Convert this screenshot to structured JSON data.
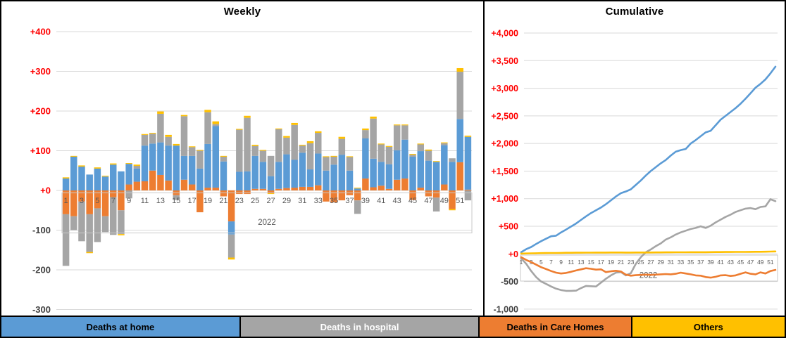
{
  "panels": {
    "weekly": {
      "title": "Weekly"
    },
    "cumulative": {
      "title": "Cumulative"
    }
  },
  "colors": {
    "home": "#5B9BD5",
    "hospital": "#A5A5A5",
    "care_homes": "#ED7D31",
    "others": "#FFC000",
    "axis_positive": "#FF0000",
    "axis_negative": "#404040",
    "tick_text": "#595959",
    "gridline": "#D9D9D9",
    "tick_box": "#C9C9C9",
    "frame_border": "#000000"
  },
  "legend": [
    {
      "label": "Deaths at home",
      "color": "#5B9BD5",
      "text_color": "#000000",
      "width_pct": 30.55
    },
    {
      "label": "Deaths in hospital",
      "color": "#A5A5A5",
      "text_color": "#FFFFFF",
      "width_pct": 30.55
    },
    {
      "label": "Deaths in Care Homes",
      "color": "#ED7D31",
      "text_color": "#000000",
      "width_pct": 19.45
    },
    {
      "label": "Others",
      "color": "#FFC000",
      "text_color": "#000000",
      "width_pct": 19.45
    }
  ],
  "chart_data": [
    {
      "type": "bar",
      "stacked": true,
      "title": "Weekly",
      "xlabel": "2022",
      "x": [
        1,
        2,
        3,
        4,
        5,
        6,
        7,
        8,
        9,
        10,
        11,
        12,
        13,
        14,
        15,
        16,
        17,
        18,
        19,
        20,
        21,
        22,
        23,
        24,
        25,
        26,
        27,
        28,
        29,
        30,
        31,
        32,
        33,
        34,
        35,
        36,
        37,
        38,
        39,
        40,
        41,
        42,
        43,
        44,
        45,
        46,
        47,
        48,
        49,
        50,
        51,
        52
      ],
      "xticks": [
        1,
        3,
        5,
        7,
        9,
        11,
        13,
        15,
        17,
        19,
        21,
        23,
        25,
        27,
        29,
        31,
        33,
        35,
        37,
        39,
        41,
        43,
        45,
        47,
        49,
        51
      ],
      "ylim": [
        -300,
        400
      ],
      "yticks": [
        {
          "value": 400,
          "label": "+400"
        },
        {
          "value": 300,
          "label": "+300"
        },
        {
          "value": 200,
          "label": "+200"
        },
        {
          "value": 100,
          "label": "+100"
        },
        {
          "value": 0,
          "label": "+0"
        },
        {
          "value": -100,
          "label": "-100"
        },
        {
          "value": -200,
          "label": "-200"
        },
        {
          "value": -300,
          "label": "-300"
        }
      ],
      "grid": true,
      "legend_position": "bottom",
      "series": [
        {
          "name": "Deaths in Care Homes",
          "color_key": "care_homes",
          "values": [
            -60,
            -65,
            -28,
            -60,
            -45,
            -65,
            -17,
            -50,
            15,
            22,
            23,
            50,
            39,
            25,
            -12,
            27,
            15,
            -55,
            7,
            7,
            -15,
            -78,
            -9,
            -9,
            4,
            4,
            -6,
            4,
            6,
            7,
            9,
            9,
            13,
            -28,
            -30,
            -25,
            -12,
            -25,
            30,
            8,
            12,
            4,
            27,
            30,
            -24,
            7,
            -15,
            -18,
            15,
            -47,
            71,
            2
          ]
        },
        {
          "name": "Deaths at home",
          "color_key": "home",
          "values": [
            30,
            85,
            60,
            40,
            55,
            35,
            65,
            48,
            52,
            33,
            90,
            68,
            82,
            88,
            113,
            60,
            72,
            55,
            110,
            155,
            73,
            -33,
            47,
            48,
            83,
            68,
            36,
            68,
            85,
            70,
            86,
            44,
            80,
            50,
            65,
            90,
            50,
            5,
            101,
            72,
            60,
            62,
            74,
            98,
            85,
            92,
            75,
            72,
            99,
            72,
            109,
            133
          ]
        },
        {
          "name": "Deaths in hospital",
          "color_key": "hospital",
          "values": [
            -130,
            -35,
            -100,
            -95,
            -85,
            -40,
            -95,
            -60,
            -20,
            7,
            27,
            25,
            72,
            22,
            -12,
            100,
            22,
            45,
            80,
            5,
            12,
            -58,
            106,
            135,
            25,
            28,
            51,
            82,
            42,
            88,
            18,
            66,
            52,
            34,
            20,
            40,
            34,
            -34,
            21,
            101,
            44,
            44,
            63,
            36,
            5,
            17,
            25,
            -35,
            5,
            9,
            119,
            -25
          ]
        },
        {
          "name": "Others",
          "color_key": "others",
          "values": [
            3,
            2,
            3,
            -3,
            3,
            2,
            3,
            -3,
            2,
            3,
            2,
            2,
            6,
            5,
            4,
            3,
            2,
            2,
            6,
            7,
            2,
            -5,
            2,
            5,
            3,
            2,
            -3,
            2,
            4,
            5,
            2,
            5,
            4,
            2,
            2,
            5,
            2,
            2,
            4,
            5,
            2,
            2,
            2,
            2,
            2,
            2,
            3,
            2,
            2,
            -3,
            9,
            3
          ]
        }
      ]
    },
    {
      "type": "line",
      "title": "Cumulative",
      "xlabel": "2022",
      "x": [
        1,
        2,
        3,
        4,
        5,
        6,
        7,
        8,
        9,
        10,
        11,
        12,
        13,
        14,
        15,
        16,
        17,
        18,
        19,
        20,
        21,
        22,
        23,
        24,
        25,
        26,
        27,
        28,
        29,
        30,
        31,
        32,
        33,
        34,
        35,
        36,
        37,
        38,
        39,
        40,
        41,
        42,
        43,
        44,
        45,
        46,
        47,
        48,
        49,
        50,
        51,
        52
      ],
      "xticks": [
        1,
        3,
        5,
        7,
        9,
        11,
        13,
        15,
        17,
        19,
        21,
        23,
        25,
        27,
        29,
        31,
        33,
        35,
        37,
        39,
        41,
        43,
        45,
        47,
        49,
        51
      ],
      "ylim": [
        -1000,
        4000
      ],
      "yticks": [
        {
          "value": 4000,
          "label": "+4,000"
        },
        {
          "value": 3500,
          "label": "+3,500"
        },
        {
          "value": 3000,
          "label": "+3,000"
        },
        {
          "value": 2500,
          "label": "+2,500"
        },
        {
          "value": 2000,
          "label": "+2,000"
        },
        {
          "value": 1500,
          "label": "+1,500"
        },
        {
          "value": 1000,
          "label": "+1,000"
        },
        {
          "value": 500,
          "label": "+500"
        },
        {
          "value": 0,
          "label": "+0"
        },
        {
          "value": -500,
          "label": "-500"
        },
        {
          "value": -1000,
          "label": "-1,000"
        }
      ],
      "grid": true,
      "legend_position": "bottom",
      "series": [
        {
          "name": "Deaths in hospital",
          "color_key": "hospital",
          "values": [
            -80,
            -180,
            -310,
            -420,
            -500,
            -545,
            -590,
            -630,
            -655,
            -670,
            -670,
            -665,
            -620,
            -580,
            -585,
            -590,
            -520,
            -450,
            -390,
            -340,
            -330,
            -390,
            -350,
            -180,
            -60,
            30,
            80,
            140,
            190,
            260,
            300,
            350,
            390,
            420,
            450,
            470,
            500,
            470,
            510,
            570,
            620,
            670,
            710,
            760,
            790,
            820,
            830,
            810,
            850,
            860,
            990,
            955
          ]
        },
        {
          "name": "Deaths in Care Homes",
          "color_key": "care_homes",
          "values": [
            -60,
            -110,
            -150,
            -195,
            -240,
            -275,
            -310,
            -340,
            -355,
            -345,
            -325,
            -300,
            -280,
            -260,
            -270,
            -285,
            -280,
            -330,
            -315,
            -305,
            -320,
            -375,
            -395,
            -385,
            -380,
            -375,
            -380,
            -375,
            -370,
            -365,
            -370,
            -360,
            -340,
            -355,
            -370,
            -390,
            -395,
            -420,
            -430,
            -415,
            -390,
            -385,
            -400,
            -390,
            -360,
            -335,
            -360,
            -370,
            -335,
            -355,
            -310,
            -290
          ]
        },
        {
          "name": "Deaths at home",
          "color_key": "home",
          "values": [
            30,
            85,
            125,
            180,
            230,
            275,
            320,
            330,
            390,
            440,
            495,
            550,
            615,
            680,
            740,
            790,
            840,
            900,
            970,
            1040,
            1100,
            1130,
            1170,
            1250,
            1330,
            1420,
            1500,
            1570,
            1640,
            1700,
            1780,
            1850,
            1880,
            1900,
            2000,
            2060,
            2130,
            2200,
            2230,
            2330,
            2430,
            2500,
            2570,
            2640,
            2720,
            2810,
            2910,
            3010,
            3080,
            3160,
            3270,
            3390
          ]
        },
        {
          "name": "Others",
          "color_key": "others",
          "values": [
            5,
            8,
            10,
            12,
            14,
            15,
            16,
            17,
            18,
            20,
            20,
            21,
            22,
            23,
            23,
            24,
            24,
            24,
            25,
            25,
            25,
            24,
            24,
            25,
            26,
            26,
            26,
            27,
            27,
            28,
            28,
            29,
            29,
            29,
            30,
            30,
            30,
            31,
            32,
            33,
            33,
            34,
            34,
            35,
            35,
            36,
            37,
            38,
            38,
            39,
            42,
            45
          ]
        }
      ]
    }
  ]
}
